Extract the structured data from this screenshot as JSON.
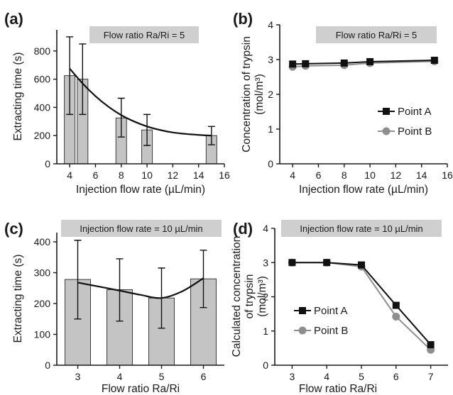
{
  "colors": {
    "point_a": "#111111",
    "point_b": "#8e8e8e",
    "bar_fill": "#c4c4c4",
    "annot_fill": "#cfcfcf"
  },
  "chart_data": [
    {
      "panel": "(a)",
      "type": "bar",
      "annotation": "Flow ratio Ra/Ri = 5",
      "xlabel": "Injection flow rate (µL/min)",
      "ylabel": "Extracting time (s)",
      "xlim": [
        3,
        16
      ],
      "ylim": [
        0,
        950
      ],
      "xticks": [
        4,
        6,
        8,
        10,
        12,
        14,
        16
      ],
      "yticks": [
        0,
        200,
        400,
        600,
        800
      ],
      "bars": [
        {
          "x": 4,
          "value": 625,
          "err_low": 350,
          "err_high": 900
        },
        {
          "x": 5,
          "value": 600,
          "err_low": 350,
          "err_high": 850
        },
        {
          "x": 8,
          "value": 325,
          "err_low": 190,
          "err_high": 465
        },
        {
          "x": 10,
          "value": 240,
          "err_low": 130,
          "err_high": 350
        },
        {
          "x": 15,
          "value": 200,
          "err_low": 135,
          "err_high": 265
        }
      ],
      "fit_curve": {
        "x": [
          4,
          5,
          6,
          7,
          8,
          9,
          10,
          11,
          12,
          13,
          14,
          15
        ],
        "y": [
          675,
          570,
          480,
          405,
          345,
          300,
          265,
          240,
          222,
          212,
          205,
          200
        ]
      }
    },
    {
      "panel": "(b)",
      "type": "line",
      "annotation": "Flow ratio Ra/Ri = 5",
      "xlabel": "Injection flow rate (µL/min)",
      "ylabel": "Concentration of trypsin",
      "ylabel_unit": "(mol/m³)",
      "xlim": [
        3,
        16
      ],
      "ylim": [
        0,
        4
      ],
      "xticks": [
        4,
        6,
        8,
        10,
        12,
        14,
        16
      ],
      "yticks": [
        0,
        1,
        2,
        3,
        4
      ],
      "x": [
        4,
        5,
        8,
        10,
        15
      ],
      "series": [
        {
          "name": "Point A",
          "marker": "square",
          "values": [
            2.87,
            2.88,
            2.9,
            2.94,
            2.98
          ]
        },
        {
          "name": "Point B",
          "marker": "circle",
          "values": [
            2.79,
            2.82,
            2.84,
            2.9,
            2.95
          ]
        }
      ],
      "legend": "right"
    },
    {
      "panel": "(c)",
      "type": "bar",
      "annotation": "Injection flow rate = 10 µL/min",
      "xlabel": "Flow ratio Ra/Ri",
      "ylabel": "Extracting time (s)",
      "xlim": [
        2.5,
        6.5
      ],
      "ylim": [
        0,
        430
      ],
      "xticks": [
        3,
        4,
        5,
        6
      ],
      "yticks": [
        0,
        100,
        200,
        300,
        400
      ],
      "bars": [
        {
          "x": 3,
          "value": 278,
          "err_low": 150,
          "err_high": 405
        },
        {
          "x": 4,
          "value": 245,
          "err_low": 143,
          "err_high": 345
        },
        {
          "x": 5,
          "value": 218,
          "err_low": 120,
          "err_high": 315
        },
        {
          "x": 6,
          "value": 280,
          "err_low": 187,
          "err_high": 373
        }
      ],
      "fit_curve": {
        "x": [
          3,
          3.5,
          4,
          4.5,
          5,
          5.5,
          6
        ],
        "y": [
          268,
          255,
          242,
          228,
          218,
          240,
          282
        ]
      }
    },
    {
      "panel": "(d)",
      "type": "line",
      "annotation": "Injection flow rate = 10 µL/min",
      "xlabel": "Flow ratio Ra/Ri",
      "ylabel": "Calculated concentration",
      "ylabel_line2": "of trypsin",
      "ylabel_unit": "(mol/m³)",
      "xlim": [
        2.5,
        7.5
      ],
      "ylim": [
        0,
        4
      ],
      "xticks": [
        3,
        4,
        5,
        6,
        7
      ],
      "yticks": [
        0,
        1,
        2,
        3,
        4
      ],
      "x": [
        3,
        4,
        5,
        6,
        7
      ],
      "series": [
        {
          "name": "Point A",
          "marker": "square",
          "values": [
            3.0,
            3.0,
            2.93,
            1.75,
            0.6
          ]
        },
        {
          "name": "Point B",
          "marker": "circle",
          "values": [
            3.0,
            3.0,
            2.88,
            1.42,
            0.45
          ]
        }
      ],
      "legend": "left"
    }
  ]
}
